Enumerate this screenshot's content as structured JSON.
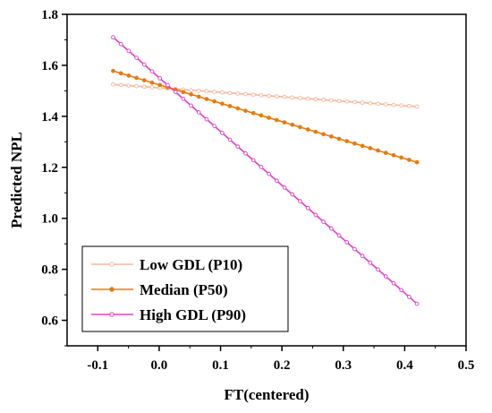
{
  "chart_data": {
    "type": "line",
    "title": "",
    "xlabel": "FT(centered)",
    "ylabel": "Predicted NPL",
    "xlim": [
      -0.15,
      0.5
    ],
    "ylim": [
      0.5,
      1.8
    ],
    "xticks": [
      -0.1,
      0.0,
      0.1,
      0.2,
      0.3,
      0.4,
      0.5
    ],
    "xtick_labels": [
      "-0.1",
      "0.0",
      "0.1",
      "0.2",
      "0.3",
      "0.4",
      "0.5"
    ],
    "yticks": [
      0.6,
      0.8,
      1.0,
      1.2,
      1.4,
      1.6,
      1.8
    ],
    "ytick_labels": [
      "0.6",
      "0.8",
      "1.0",
      "1.2",
      "1.4",
      "1.6",
      "1.8"
    ],
    "grid": false,
    "legend_position": "bottom-left",
    "x_range": [
      -0.075,
      0.42
    ],
    "point_count": 40,
    "series": [
      {
        "name": "Low GDL (P10)",
        "start": 1.525,
        "end": 1.438,
        "color": "#f7b59b"
      },
      {
        "name": "Median (P50)",
        "start": 1.578,
        "end": 1.22,
        "color": "#e8790c"
      },
      {
        "name": "High GDL (P90)",
        "start": 1.71,
        "end": 0.665,
        "color": "#e040c8"
      }
    ]
  }
}
